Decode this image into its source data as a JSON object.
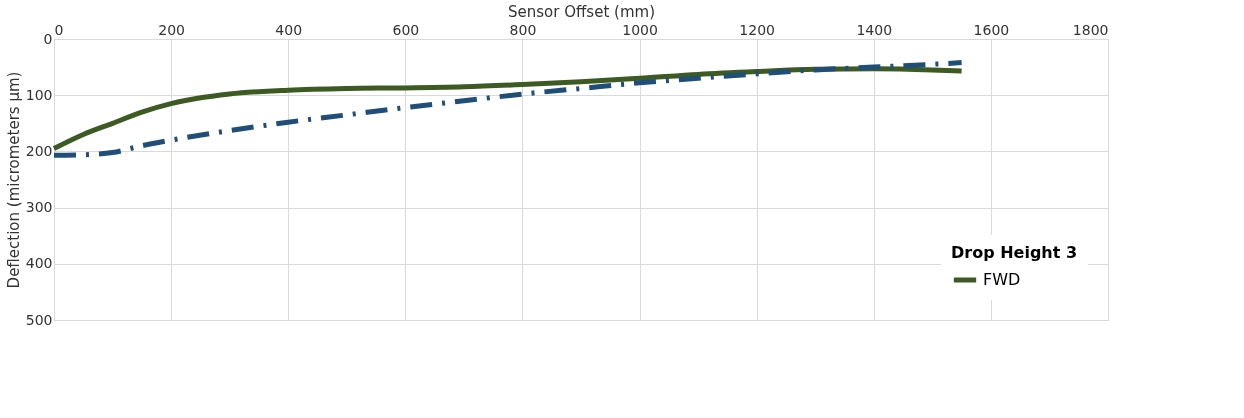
{
  "chart_data": {
    "type": "line",
    "xlabel": "Sensor Offset (mm)",
    "ylabel": "Deflection (micrometers μm)",
    "legend_title": "Drop Height 3",
    "xlim": [
      0,
      1800
    ],
    "xticks": [
      0,
      200,
      400,
      600,
      800,
      1000,
      1200,
      1400,
      1600,
      1800
    ],
    "ylim": [
      500,
      0
    ],
    "yticks": [
      0,
      100,
      200,
      300,
      400,
      500
    ],
    "grid": true,
    "legend": "bottom right",
    "series": [
      {
        "name": "FWD",
        "color": "#3d5a23",
        "line_style": "solid",
        "x": [
          0,
          50,
          100,
          150,
          200,
          300,
          400,
          500,
          600,
          700,
          800,
          900,
          1000,
          1100,
          1200,
          1300,
          1400,
          1500,
          1550
        ],
        "values": [
          195,
          170,
          150,
          130,
          115,
          98,
          91,
          88,
          87,
          85,
          81,
          76,
          70,
          63,
          58,
          54,
          53,
          55,
          57
        ]
      },
      {
        "color": "#1f4e79",
        "line_style": "dashed",
        "x": [
          0,
          50,
          100,
          150,
          200,
          300,
          400,
          500,
          600,
          700,
          800,
          900,
          1000,
          1100,
          1200,
          1300,
          1400,
          1500,
          1550
        ],
        "values": [
          207,
          206,
          202,
          190,
          180,
          163,
          148,
          135,
          122,
          110,
          98,
          88,
          78,
          70,
          62,
          55,
          50,
          45,
          42
        ]
      }
    ]
  }
}
